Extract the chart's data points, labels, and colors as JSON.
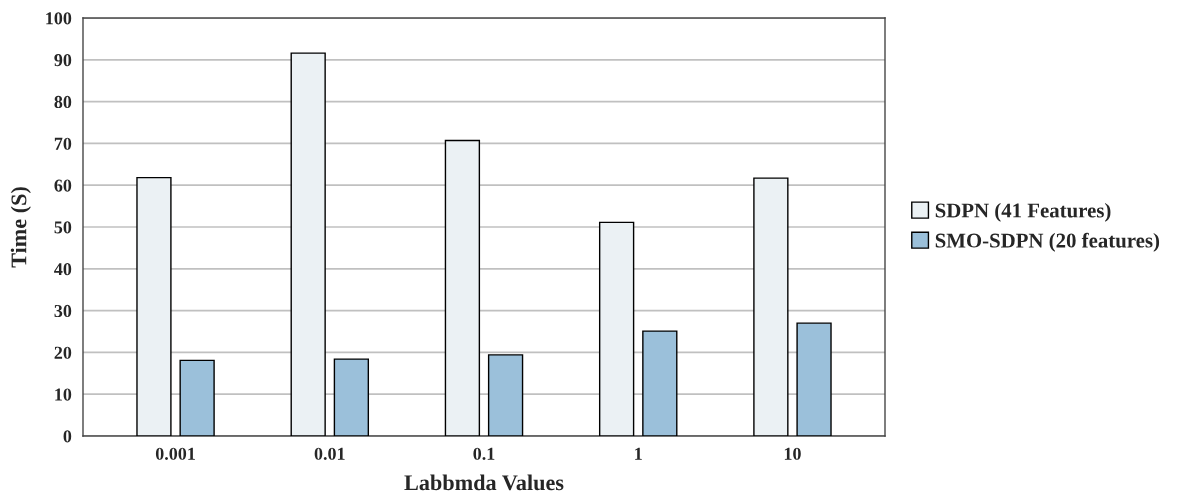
{
  "chart_data": {
    "type": "bar",
    "xlabel": "Labbmda Values",
    "ylabel": "Time (S)",
    "categories": [
      "0.001",
      "0.01",
      "0.1",
      "1",
      "10"
    ],
    "series": [
      {
        "name": "SDPN (41 Features)",
        "color": "#ebf1f4",
        "values": [
          61.8,
          91.6,
          70.7,
          51.1,
          61.7
        ]
      },
      {
        "name": "SMO-SDPN (20 features)",
        "color": "#9bc0da",
        "values": [
          18.1,
          18.4,
          19.4,
          25.1,
          27.0
        ]
      }
    ],
    "ylim": [
      0,
      100
    ],
    "yticks": [
      0,
      10,
      20,
      30,
      40,
      50,
      60,
      70,
      80,
      90,
      100
    ],
    "grid": "y",
    "legend": "right"
  }
}
